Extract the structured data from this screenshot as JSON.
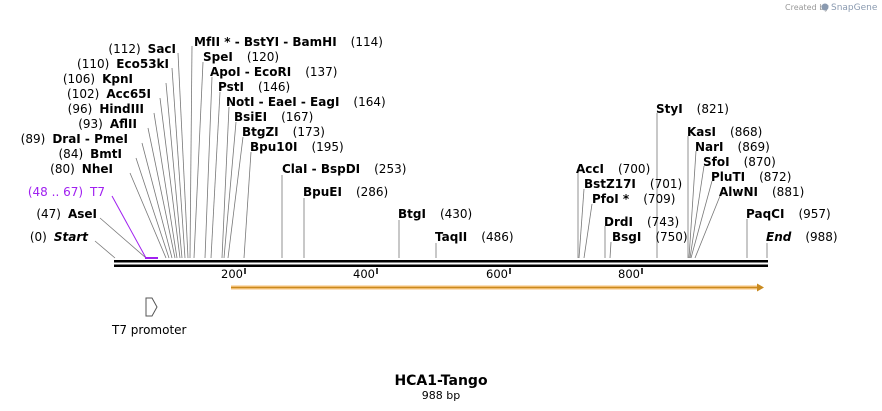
{
  "credit": {
    "created_by": "Created by",
    "brand": "SnapGene"
  },
  "title": "HCA1-Tango",
  "length_label": "988 bp",
  "scale_ticks": [
    "200",
    "400",
    "600",
    "800"
  ],
  "feature_primer": {
    "range": "(48 .. 67)",
    "name": "T7"
  },
  "feature_promoter": "T7 promoter",
  "left_sites": [
    {
      "pos": "(112)",
      "name": "SacI"
    },
    {
      "pos": "(110)",
      "name": "Eco53kI"
    },
    {
      "pos": "(106)",
      "name": "KpnI"
    },
    {
      "pos": "(102)",
      "name": "Acc65I"
    },
    {
      "pos": "(96)",
      "name": "HindIII"
    },
    {
      "pos": "(93)",
      "name": "AflII"
    },
    {
      "pos": "(89)",
      "name": "DraI - PmeI"
    },
    {
      "pos": "(84)",
      "name": "BmtI"
    },
    {
      "pos": "(80)",
      "name": "NheI"
    },
    {
      "pos": "(47)",
      "name": "AseI"
    },
    {
      "pos": "(0)",
      "name": "Start"
    }
  ],
  "mid_sites": [
    {
      "name": "MfII * - BstYI - BamHI",
      "pos": "(114)"
    },
    {
      "name": "SpeI",
      "pos": "(120)"
    },
    {
      "name": "ApoI - EcoRI",
      "pos": "(137)"
    },
    {
      "name": "PstI",
      "pos": "(146)"
    },
    {
      "name": "NotI - EaeI - EagI",
      "pos": "(164)"
    },
    {
      "name": "BsiEI",
      "pos": "(167)"
    },
    {
      "name": "BtgZI",
      "pos": "(173)"
    },
    {
      "name": "Bpu10I",
      "pos": "(195)"
    },
    {
      "name": "ClaI - BspDI",
      "pos": "(253)"
    },
    {
      "name": "BpuEI",
      "pos": "(286)"
    },
    {
      "name": "BtgI",
      "pos": "(430)"
    },
    {
      "name": "TaqII",
      "pos": "(486)"
    }
  ],
  "right_sites": [
    {
      "name": "StyI",
      "pos": "(821)"
    },
    {
      "name": "KasI",
      "pos": "(868)"
    },
    {
      "name": "NarI",
      "pos": "(869)"
    },
    {
      "name": "SfoI",
      "pos": "(870)"
    },
    {
      "name": "PluTI",
      "pos": "(872)"
    },
    {
      "name": "AlwNI",
      "pos": "(881)"
    },
    {
      "name": "PaqCI",
      "pos": "(957)"
    },
    {
      "name": "End",
      "pos": "(988)"
    },
    {
      "name": "AccI",
      "pos": "(700)"
    },
    {
      "name": "BstZ17I",
      "pos": "(701)"
    },
    {
      "name": "PfoI *",
      "pos": "(709)"
    },
    {
      "name": "DrdI",
      "pos": "(743)"
    },
    {
      "name": "BsgI",
      "pos": "(750)"
    }
  ],
  "colors": {
    "primer": "#a020f0",
    "orf_fill": "#f5c27a",
    "orf_edge": "#c98a1e",
    "backbone": "#000000"
  }
}
